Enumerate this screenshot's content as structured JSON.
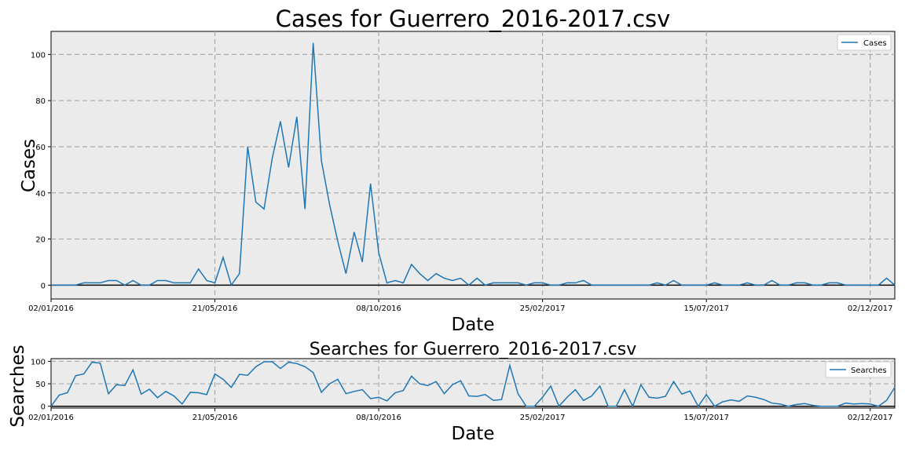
{
  "chart_data": [
    {
      "type": "line",
      "title": "Cases for Guerrero_2016-2017.csv",
      "xlabel": "Date",
      "ylabel": "Cases",
      "x_tick_labels": [
        "02/01/2016",
        "21/05/2016",
        "08/10/2016",
        "25/02/2017",
        "15/07/2017",
        "02/12/2017"
      ],
      "x_tick_weeks": [
        0,
        20,
        40,
        60,
        80,
        100
      ],
      "x_range_weeks": [
        0,
        103
      ],
      "y_ticks": [
        0,
        20,
        40,
        60,
        80,
        100
      ],
      "ylim": [
        -6,
        110
      ],
      "grid": true,
      "legend_position": "top-right",
      "series": [
        {
          "name": "Cases",
          "color": "#1f77b4",
          "week_index_start": 0,
          "values": [
            0,
            0,
            0,
            0,
            1,
            1,
            1,
            2,
            2,
            0,
            2,
            0,
            0,
            2,
            2,
            1,
            1,
            1,
            7,
            2,
            1,
            12,
            0,
            5,
            60,
            36,
            33,
            55,
            71,
            51,
            73,
            33,
            105,
            54,
            35,
            19,
            5,
            23,
            10,
            44,
            14,
            1,
            2,
            1,
            9,
            5,
            2,
            5,
            3,
            2,
            3,
            0,
            3,
            0,
            1,
            1,
            1,
            1,
            0,
            1,
            1,
            0,
            0,
            1,
            1,
            2,
            0,
            0,
            0,
            0,
            0,
            0,
            0,
            0,
            1,
            0,
            2,
            0,
            0,
            0,
            0,
            1,
            0,
            0,
            0,
            1,
            0,
            0,
            2,
            0,
            0,
            1,
            1,
            0,
            0,
            1,
            1,
            0,
            0,
            0,
            0,
            0,
            3,
            0
          ]
        }
      ]
    },
    {
      "type": "line",
      "title": "Searches for Guerrero_2016-2017.csv",
      "xlabel": "Date",
      "ylabel": "Searches",
      "x_tick_labels": [
        "02/01/2016",
        "21/05/2016",
        "08/10/2016",
        "25/02/2017",
        "15/07/2017",
        "02/12/2017"
      ],
      "x_tick_weeks": [
        0,
        20,
        40,
        60,
        80,
        100
      ],
      "x_range_weeks": [
        0,
        103
      ],
      "y_ticks": [
        0,
        50,
        100
      ],
      "ylim": [
        -4,
        106
      ],
      "grid": true,
      "legend_position": "top-right",
      "series": [
        {
          "name": "Searches",
          "color": "#1f77b4",
          "week_index_start": 0,
          "values": [
            0,
            25,
            30,
            68,
            72,
            98,
            96,
            28,
            48,
            46,
            81,
            27,
            38,
            19,
            33,
            23,
            5,
            31,
            30,
            26,
            72,
            60,
            42,
            71,
            69,
            88,
            99,
            99,
            84,
            98,
            95,
            88,
            75,
            31,
            50,
            60,
            28,
            33,
            37,
            17,
            20,
            12,
            30,
            35,
            67,
            50,
            46,
            55,
            28,
            48,
            57,
            23,
            22,
            26,
            13,
            15,
            91,
            28,
            0,
            0,
            20,
            45,
            0,
            20,
            37,
            13,
            23,
            45,
            0,
            0,
            37,
            0,
            48,
            20,
            18,
            22,
            55,
            27,
            34,
            0,
            26,
            0,
            10,
            14,
            11,
            23,
            20,
            15,
            7,
            5,
            0,
            4,
            6,
            2,
            0,
            0,
            0,
            7,
            5,
            6,
            5,
            0,
            13,
            42
          ]
        }
      ]
    }
  ]
}
